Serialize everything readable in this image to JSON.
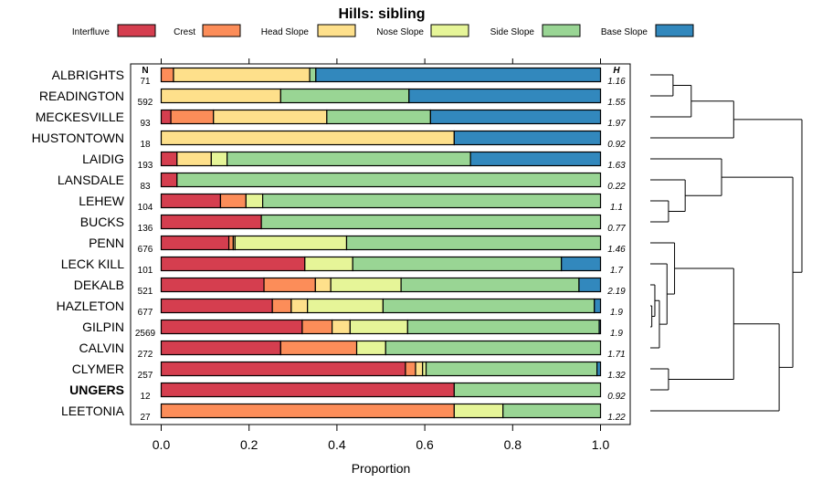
{
  "chart_data": {
    "type": "bar",
    "orientation": "horizontal",
    "stacked": true,
    "title": "Hills: sibling",
    "xlabel": "Proportion",
    "ylabel": "",
    "xlim": [
      0,
      1
    ],
    "xticks": [
      "0.0",
      "0.2",
      "0.4",
      "0.6",
      "0.8",
      "1.0"
    ],
    "n_header": "N",
    "h_header": "H",
    "legend_position": "top",
    "classes": [
      {
        "name": "Interfluve",
        "color": "#D53E4F"
      },
      {
        "name": "Crest",
        "color": "#FC8D59"
      },
      {
        "name": "Head Slope",
        "color": "#FEE08B"
      },
      {
        "name": "Nose Slope",
        "color": "#E6F598"
      },
      {
        "name": "Side Slope",
        "color": "#99D594"
      },
      {
        "name": "Base Slope",
        "color": "#3288BD"
      }
    ],
    "rows": [
      {
        "name": "ALBRIGHTS",
        "n": "71",
        "h": "1.16",
        "bold": false,
        "values": [
          0,
          0.028,
          0.31,
          0,
          0.014,
          0.648
        ]
      },
      {
        "name": "READINGTON",
        "n": "592",
        "h": "1.55",
        "bold": false,
        "values": [
          0,
          0,
          0.272,
          0,
          0.292,
          0.436
        ]
      },
      {
        "name": "MECKESVILLE",
        "n": "93",
        "h": "1.97",
        "bold": false,
        "values": [
          0.022,
          0.097,
          0.258,
          0,
          0.236,
          0.387
        ]
      },
      {
        "name": "HUSTONTOWN",
        "n": "18",
        "h": "0.92",
        "bold": false,
        "values": [
          0,
          0,
          0.667,
          0,
          0,
          0.333
        ]
      },
      {
        "name": "LAIDIG",
        "n": "193",
        "h": "1.63",
        "bold": false,
        "values": [
          0.036,
          0,
          0.078,
          0.036,
          0.554,
          0.296
        ]
      },
      {
        "name": "LANSDALE",
        "n": "83",
        "h": "0.22",
        "bold": false,
        "values": [
          0.036,
          0,
          0,
          0,
          0.964,
          0
        ]
      },
      {
        "name": "LEHEW",
        "n": "104",
        "h": "1.1",
        "bold": false,
        "values": [
          0.135,
          0.058,
          0,
          0.038,
          0.769,
          0
        ]
      },
      {
        "name": "BUCKS",
        "n": "136",
        "h": "0.77",
        "bold": false,
        "values": [
          0.228,
          0,
          0,
          0,
          0.772,
          0
        ]
      },
      {
        "name": "PENN",
        "n": "676",
        "h": "1.46",
        "bold": false,
        "values": [
          0.154,
          0.01,
          0.004,
          0.254,
          0.578,
          0
        ]
      },
      {
        "name": "LECK KILL",
        "n": "101",
        "h": "1.7",
        "bold": false,
        "values": [
          0.327,
          0,
          0,
          0.109,
          0.475,
          0.089
        ]
      },
      {
        "name": "DEKALB",
        "n": "521",
        "h": "2.19",
        "bold": false,
        "values": [
          0.234,
          0.117,
          0.035,
          0.16,
          0.405,
          0.049
        ]
      },
      {
        "name": "HAZLETON",
        "n": "677",
        "h": "1.9",
        "bold": false,
        "values": [
          0.253,
          0.043,
          0.037,
          0.172,
          0.481,
          0.014
        ]
      },
      {
        "name": "GILPIN",
        "n": "2569",
        "h": "1.9",
        "bold": false,
        "values": [
          0.321,
          0.068,
          0.041,
          0.131,
          0.436,
          0.003
        ]
      },
      {
        "name": "CALVIN",
        "n": "272",
        "h": "1.71",
        "bold": false,
        "values": [
          0.272,
          0.173,
          0,
          0.066,
          0.489,
          0
        ]
      },
      {
        "name": "CLYMER",
        "n": "257",
        "h": "1.32",
        "bold": false,
        "values": [
          0.556,
          0.023,
          0.016,
          0.008,
          0.389,
          0.008
        ]
      },
      {
        "name": "UNGERS",
        "n": "12",
        "h": "0.92",
        "bold": true,
        "values": [
          0.667,
          0,
          0,
          0,
          0.333,
          0
        ]
      },
      {
        "name": "LEETONIA",
        "n": "27",
        "h": "1.22",
        "bold": false,
        "values": [
          0,
          0.667,
          0,
          0.111,
          0.222,
          0
        ]
      }
    ],
    "dendrogram": {
      "type": "hierarchical-clustering",
      "position": "right",
      "nodes": [
        {
          "children": [
            0,
            1
          ],
          "height": 0.15
        },
        {
          "children": [
            "n0",
            2
          ],
          "height": 0.27
        },
        {
          "children": [
            "n1",
            3
          ],
          "height": 0.55
        },
        {
          "children": [
            6,
            7
          ],
          "height": 0.12
        },
        {
          "children": [
            "n3",
            5
          ],
          "height": 0.23
        },
        {
          "children": [
            "n4",
            4
          ],
          "height": 0.47
        },
        {
          "children": [
            11,
            12
          ],
          "height": 0.01
        },
        {
          "children": [
            10,
            "n6"
          ],
          "height": 0.03
        },
        {
          "children": [
            "n7",
            13
          ],
          "height": 0.06
        },
        {
          "children": [
            "n8",
            9
          ],
          "height": 0.11
        },
        {
          "children": [
            "n9",
            8
          ],
          "height": 0.16
        },
        {
          "children": [
            14,
            15
          ],
          "height": 0.12
        },
        {
          "children": [
            "n10",
            "n11"
          ],
          "height": 0.55
        },
        {
          "children": [
            "n12",
            16
          ],
          "height": 0.85
        },
        {
          "children": [
            "n5",
            "n13"
          ],
          "height": 0.94
        },
        {
          "children": [
            "n2",
            "n14"
          ],
          "height": 1.0
        }
      ]
    }
  }
}
